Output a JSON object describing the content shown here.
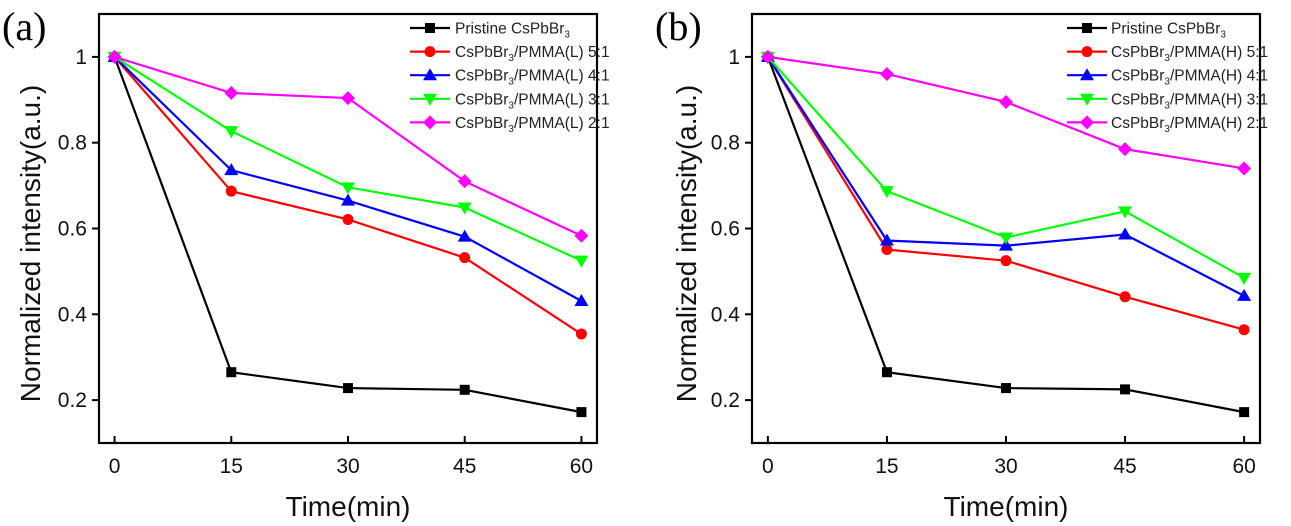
{
  "chart_data": [
    {
      "type": "line",
      "panel_label": "(a)",
      "xlabel": "Time(min)",
      "ylabel": "Normalized intensity(a.u.)",
      "x": [
        0,
        15,
        30,
        45,
        60
      ],
      "xticks": [
        "0",
        "15",
        "30",
        "45",
        "60"
      ],
      "yticks": [
        "0.2",
        "0.4",
        "0.6",
        "0.8",
        "1"
      ],
      "ytick_values": [
        0.2,
        0.4,
        0.6,
        0.8,
        1.0
      ],
      "xlim": [
        -2,
        62
      ],
      "ylim": [
        0.1,
        1.1
      ],
      "grid": false,
      "legend_position": "top-right",
      "series": [
        {
          "name": "Pristine CsPbBr3",
          "label_main": "Pristine CsPbBr",
          "label_sub": "3",
          "label_tail": "",
          "color": "#000000",
          "marker": "square",
          "values": [
            1.0,
            0.265,
            0.228,
            0.224,
            0.172
          ]
        },
        {
          "name": "CsPbBr3/PMMA(L) 5:1",
          "label_main": "CsPbBr",
          "label_sub": "3",
          "label_tail": "/PMMA(L) 5:1",
          "color": "#ff0000",
          "marker": "circle",
          "values": [
            1.0,
            0.687,
            0.621,
            0.532,
            0.354
          ]
        },
        {
          "name": "CsPbBr3/PMMA(L) 4:1",
          "label_main": "CsPbBr",
          "label_sub": "3",
          "label_tail": "/PMMA(L) 4:1",
          "color": "#0000ff",
          "marker": "triangle-up",
          "values": [
            1.0,
            0.736,
            0.665,
            0.581,
            0.431
          ]
        },
        {
          "name": "CsPbBr3/PMMA(L) 3:1",
          "label_main": "CsPbBr",
          "label_sub": "3",
          "label_tail": "/PMMA(L) 3:1",
          "color": "#00ff00",
          "marker": "triangle-down",
          "values": [
            1.0,
            0.827,
            0.696,
            0.649,
            0.525
          ]
        },
        {
          "name": "CsPbBr3/PMMA(L) 2:1",
          "label_main": "CsPbBr",
          "label_sub": "3",
          "label_tail": "/PMMA(L) 2:1",
          "color": "#ff00ff",
          "marker": "diamond",
          "values": [
            1.0,
            0.916,
            0.904,
            0.71,
            0.583
          ]
        }
      ]
    },
    {
      "type": "line",
      "panel_label": "(b)",
      "xlabel": "Time(min)",
      "ylabel": "Normalized intensity(a.u.)",
      "x": [
        0,
        15,
        30,
        45,
        60
      ],
      "xticks": [
        "0",
        "15",
        "30",
        "45",
        "60"
      ],
      "yticks": [
        "0.2",
        "0.4",
        "0.6",
        "0.8",
        "1"
      ],
      "ytick_values": [
        0.2,
        0.4,
        0.6,
        0.8,
        1.0
      ],
      "xlim": [
        -2,
        62
      ],
      "ylim": [
        0.1,
        1.1
      ],
      "grid": false,
      "legend_position": "top-right",
      "series": [
        {
          "name": "Pristine CsPbBr3",
          "label_main": "Pristine CsPbBr",
          "label_sub": "3",
          "label_tail": "",
          "color": "#000000",
          "marker": "square",
          "values": [
            1.0,
            0.265,
            0.228,
            0.225,
            0.172
          ]
        },
        {
          "name": "CsPbBr3/PMMA(H) 5:1",
          "label_main": "CsPbBr",
          "label_sub": "3",
          "label_tail": "/PMMA(H) 5:1",
          "color": "#ff0000",
          "marker": "circle",
          "values": [
            1.0,
            0.551,
            0.525,
            0.441,
            0.364
          ]
        },
        {
          "name": "CsPbBr3/PMMA(H) 4:1",
          "label_main": "CsPbBr",
          "label_sub": "3",
          "label_tail": "/PMMA(H) 4:1",
          "color": "#0000ff",
          "marker": "triangle-up",
          "values": [
            1.0,
            0.572,
            0.56,
            0.586,
            0.443
          ]
        },
        {
          "name": "CsPbBr3/PMMA(H) 3:1",
          "label_main": "CsPbBr",
          "label_sub": "3",
          "label_tail": "/PMMA(H) 3:1",
          "color": "#00ff00",
          "marker": "triangle-down",
          "values": [
            1.0,
            0.687,
            0.579,
            0.64,
            0.485
          ]
        },
        {
          "name": "CsPbBr3/PMMA(H) 2:1",
          "label_main": "CsPbBr",
          "label_sub": "3",
          "label_tail": "/PMMA(H) 2:1",
          "color": "#ff00ff",
          "marker": "diamond",
          "values": [
            1.0,
            0.96,
            0.895,
            0.785,
            0.74
          ]
        }
      ]
    }
  ]
}
